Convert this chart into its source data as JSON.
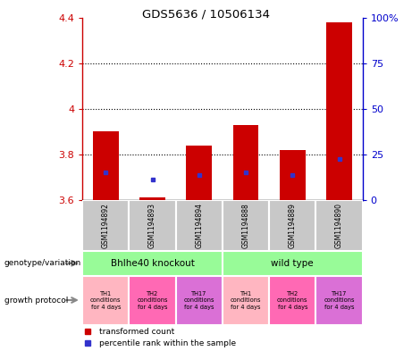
{
  "title": "GDS5636 / 10506134",
  "samples": [
    "GSM1194892",
    "GSM1194893",
    "GSM1194894",
    "GSM1194888",
    "GSM1194889",
    "GSM1194890"
  ],
  "red_values": [
    3.9,
    3.61,
    3.84,
    3.93,
    3.82,
    4.38
  ],
  "blue_values": [
    3.72,
    3.69,
    3.71,
    3.72,
    3.71,
    3.78
  ],
  "y_min": 3.6,
  "y_max": 4.4,
  "y_ticks_left": [
    3.6,
    3.8,
    4.0,
    4.2,
    4.4
  ],
  "y_ticks_left_labels": [
    "3.6",
    "3.8",
    "4",
    "4.2",
    "4.4"
  ],
  "y_right_positions": [
    3.6,
    3.8,
    4.0,
    4.2,
    4.4
  ],
  "y_right_labels": [
    "0",
    "25",
    "50",
    "75",
    "100%"
  ],
  "dotted_lines": [
    3.8,
    4.0,
    4.2
  ],
  "bar_color": "#CC0000",
  "blue_color": "#3333CC",
  "axis_color_left": "#CC0000",
  "axis_color_right": "#0000CC",
  "background_gray": "#C8C8C8",
  "legend_red": "transformed count",
  "legend_blue": "percentile rank within the sample",
  "genotype_label": "genotype/variation",
  "growth_label": "growth protocol",
  "bar_width": 0.55,
  "geno_group1_label": "Bhlhe40 knockout",
  "geno_group2_label": "wild type",
  "geno_color": "#98FB98",
  "growth_colors": [
    "#FFB6C1",
    "#FF69B4",
    "#DA70D6",
    "#FFB6C1",
    "#FF69B4",
    "#DA70D6"
  ],
  "growth_labels": [
    "TH1\nconditions\nfor 4 days",
    "TH2\nconditions\nfor 4 days",
    "TH17\nconditions\nfor 4 days",
    "TH1\nconditions\nfor 4 days",
    "TH2\nconditions\nfor 4 days",
    "TH17\nconditions\nfor 4 days"
  ]
}
